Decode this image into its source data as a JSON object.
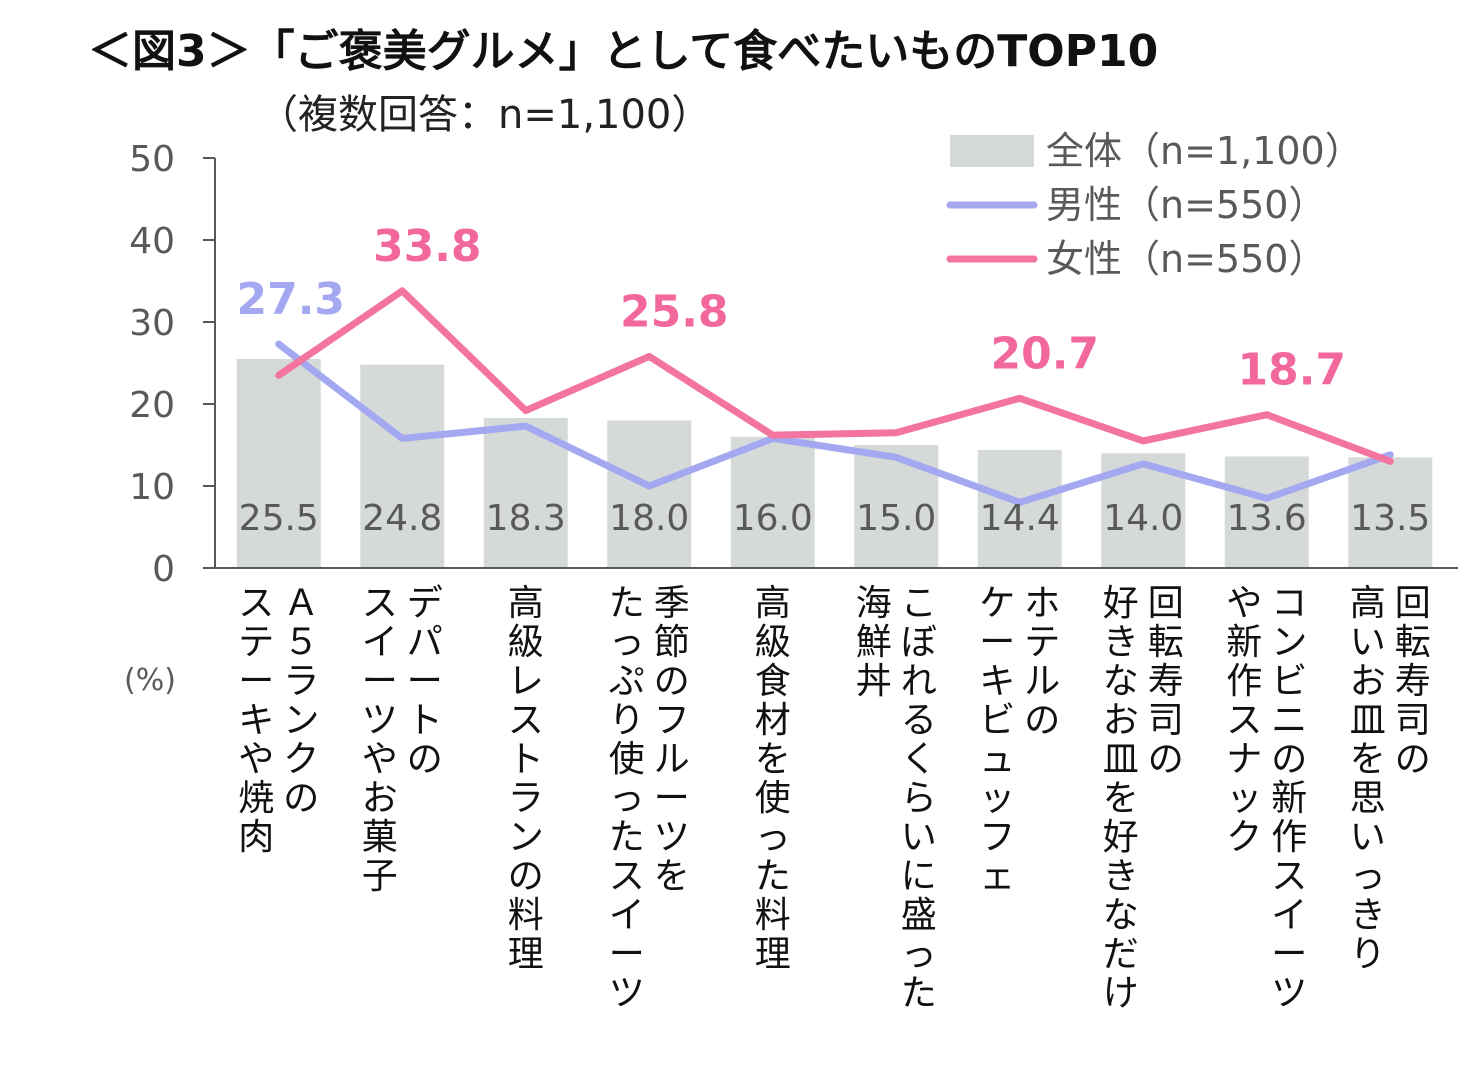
{
  "title": "＜図3＞「ご褒美グルメ」として食べたいものTOP10",
  "subtitle": "（複数回答：n=1,100）",
  "unit_label": "(%)",
  "colors": {
    "total": "#d5dad9",
    "male": "#a3a8f0",
    "female": "#f2749f",
    "axis": "#595959"
  },
  "legend": [
    {
      "label": "全体（n=1,100）",
      "kind": "bar"
    },
    {
      "label": "男性（n=550）",
      "kind": "line-male"
    },
    {
      "label": "女性（n=550）",
      "kind": "line-female"
    }
  ],
  "chart_data": {
    "type": "bar",
    "title": "＜図3＞「ご褒美グルメ」として食べたいものTOP10",
    "subtitle": "（複数回答：n=1,100）",
    "ylabel": "(%)",
    "ylim": [
      0,
      50
    ],
    "yticks": [
      "0",
      "10",
      "20",
      "30",
      "40",
      "50"
    ],
    "legend_position": "top-right",
    "categories": [
      [
        "Ａ５ランクの",
        "ステーキや焼肉"
      ],
      [
        "デパートの",
        "スイーツやお菓子"
      ],
      [
        "高級レストランの料理"
      ],
      [
        "季節のフルーツを",
        "たっぷり使ったスイーツ"
      ],
      [
        "高級食材を使った料理"
      ],
      [
        "こぼれるくらいに盛った",
        "海鮮丼"
      ],
      [
        "ホテルの",
        "ケーキビュッフェ"
      ],
      [
        "回転寿司の",
        "好きなお皿を好きなだけ"
      ],
      [
        "コンビニの新作スイーツ",
        "や新作スナック"
      ],
      [
        "回転寿司の",
        "高いお皿を思いっきり"
      ]
    ],
    "series": [
      {
        "name": "全体（n=1,100）",
        "type": "bar",
        "values": [
          25.5,
          24.8,
          18.3,
          18.0,
          16.0,
          15.0,
          14.4,
          14.0,
          13.6,
          13.5
        ],
        "labels": [
          "25.5",
          "24.8",
          "18.3",
          "18.0",
          "16.0",
          "15.0",
          "14.4",
          "14.0",
          "13.6",
          "13.5"
        ]
      },
      {
        "name": "男性（n=550）",
        "type": "line",
        "values": [
          27.3,
          15.8,
          17.3,
          10.0,
          15.8,
          13.5,
          8.0,
          12.7,
          8.5,
          13.8
        ]
      },
      {
        "name": "女性（n=550）",
        "type": "line",
        "values": [
          23.5,
          33.8,
          19.2,
          25.8,
          16.2,
          16.5,
          20.7,
          15.5,
          18.7,
          13.0
        ]
      }
    ],
    "highlights": [
      {
        "series": "男性（n=550）",
        "index": 0,
        "label": "27.3"
      },
      {
        "series": "女性（n=550）",
        "index": 1,
        "label": "33.8"
      },
      {
        "series": "女性（n=550）",
        "index": 3,
        "label": "25.8"
      },
      {
        "series": "女性（n=550）",
        "index": 6,
        "label": "20.7"
      },
      {
        "series": "女性（n=550）",
        "index": 8,
        "label": "18.7"
      }
    ]
  }
}
